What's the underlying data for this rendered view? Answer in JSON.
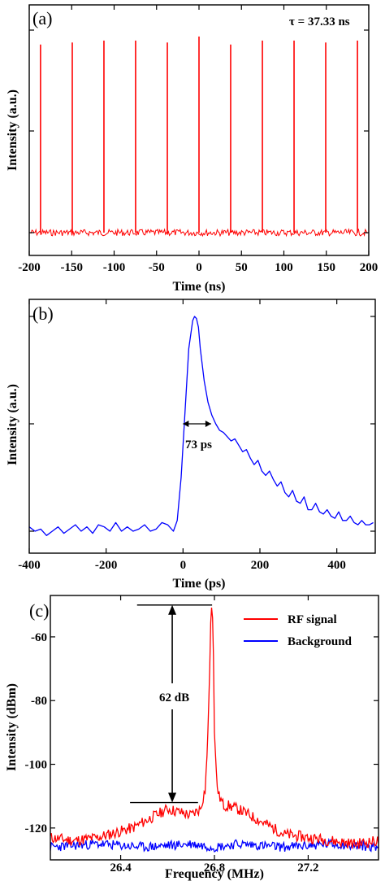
{
  "chart_data": [
    {
      "id": "a",
      "type": "line",
      "panel_label": "(a)",
      "annotation": "τ = 37.33 ns",
      "xlabel": "Time (ns)",
      "ylabel": "Intensity (a.u.)",
      "xlim": [
        -200,
        200
      ],
      "xticks": [
        -200,
        -150,
        -100,
        -50,
        0,
        50,
        100,
        150,
        200
      ],
      "yticks_labeled": false,
      "color": "#ff0000",
      "period_ns": 37.33,
      "pulse_times_ns": [
        -186.7,
        -149.3,
        -112.0,
        -74.7,
        -37.3,
        0,
        37.3,
        74.7,
        112.0,
        149.3,
        186.7
      ],
      "pulse_heights": [
        0.94,
        0.95,
        0.96,
        0.96,
        0.95,
        0.98,
        0.94,
        0.96,
        0.96,
        0.95,
        0.96
      ]
    },
    {
      "id": "b",
      "type": "line",
      "panel_label": "(b)",
      "annotation": "73 ps",
      "xlabel": "Time (ps)",
      "ylabel": "Intensity (a.u.)",
      "xlim": [
        -400,
        500
      ],
      "xticks": [
        -400,
        -200,
        0,
        200,
        400
      ],
      "yticks_labeled": false,
      "color": "#0000ff",
      "fwhm_ps": 73,
      "x": [
        -400,
        -385,
        -370,
        -355,
        -340,
        -325,
        -310,
        -295,
        -280,
        -265,
        -250,
        -235,
        -220,
        -205,
        -190,
        -175,
        -160,
        -145,
        -130,
        -115,
        -100,
        -85,
        -70,
        -55,
        -40,
        -25,
        -15,
        -5,
        5,
        15,
        25,
        30,
        35,
        40,
        45,
        55,
        65,
        75,
        85,
        95,
        105,
        115,
        125,
        135,
        145,
        155,
        165,
        175,
        185,
        195,
        205,
        215,
        225,
        235,
        245,
        255,
        265,
        275,
        285,
        295,
        305,
        315,
        325,
        335,
        345,
        355,
        365,
        375,
        385,
        395,
        405,
        415,
        425,
        435,
        445,
        455,
        465,
        475,
        485,
        495
      ],
      "y": [
        0.02,
        0.0,
        0.01,
        -0.02,
        0.0,
        0.02,
        -0.01,
        0.01,
        0.03,
        0.0,
        0.02,
        -0.01,
        0.03,
        0.02,
        0.0,
        0.04,
        0.0,
        0.02,
        0.0,
        0.01,
        0.03,
        0.0,
        0.01,
        0.04,
        0.03,
        0.0,
        0.05,
        0.25,
        0.55,
        0.85,
        0.98,
        1.0,
        0.99,
        0.95,
        0.85,
        0.7,
        0.6,
        0.54,
        0.5,
        0.47,
        0.46,
        0.44,
        0.42,
        0.43,
        0.4,
        0.37,
        0.38,
        0.34,
        0.31,
        0.33,
        0.28,
        0.26,
        0.28,
        0.24,
        0.21,
        0.23,
        0.18,
        0.16,
        0.19,
        0.14,
        0.13,
        0.16,
        0.1,
        0.1,
        0.13,
        0.09,
        0.08,
        0.1,
        0.07,
        0.06,
        0.09,
        0.05,
        0.05,
        0.07,
        0.04,
        0.03,
        0.05,
        0.03,
        0.03,
        0.04
      ]
    },
    {
      "id": "c",
      "type": "line",
      "panel_label": "(c)",
      "annotation": "62 dB",
      "xlabel": "Frequency (MHz)",
      "ylabel": "Intensity (dBm)",
      "xlim": [
        26.1,
        27.5
      ],
      "ylim": [
        -130,
        -47
      ],
      "xticks": [
        26.4,
        26.8,
        27.2
      ],
      "yticks": [
        -120,
        -100,
        -80,
        -60
      ],
      "legend_position": "top-right",
      "series": [
        {
          "name": "RF signal",
          "color": "#ff0000",
          "x": [
            26.1,
            26.2,
            26.3,
            26.4,
            26.45,
            26.5,
            26.55,
            26.6,
            26.65,
            26.7,
            26.74,
            26.76,
            26.77,
            26.78,
            26.785,
            26.79,
            26.795,
            26.8,
            26.81,
            26.82,
            26.84,
            26.86,
            26.9,
            26.95,
            27.0,
            27.05,
            27.1,
            27.2,
            27.3,
            27.4,
            27.5
          ],
          "y": [
            -123,
            -124,
            -123,
            -121,
            -120,
            -118,
            -116,
            -114,
            -115,
            -116,
            -114,
            -108,
            -95,
            -70,
            -52,
            -50,
            -60,
            -90,
            -106,
            -110,
            -113,
            -113,
            -114,
            -116,
            -118,
            -120,
            -122,
            -123,
            -124,
            -125,
            -124
          ]
        },
        {
          "name": "Background",
          "color": "#0000ff",
          "x": [
            26.1,
            26.3,
            26.5,
            26.7,
            26.8,
            26.9,
            27.1,
            27.3,
            27.5
          ],
          "y": [
            -126,
            -125,
            -126,
            -125,
            -126,
            -125,
            -126,
            -125,
            -126
          ]
        }
      ],
      "marker_top_dbm": -50,
      "marker_bottom_dbm": -112
    }
  ]
}
